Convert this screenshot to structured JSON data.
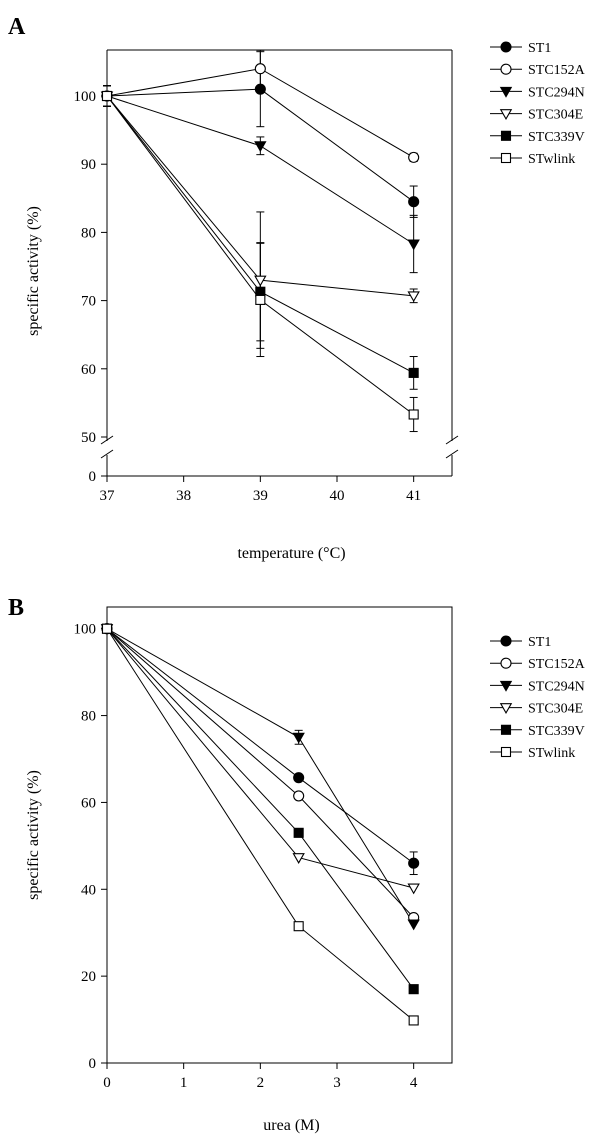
{
  "chart_data": [
    {
      "type": "line",
      "panel_label": "A",
      "xlabel": "temperature (°C)",
      "ylabel": "specific activity (%)",
      "x": [
        37,
        39,
        41
      ],
      "xticks": [
        37,
        38,
        39,
        40,
        41
      ],
      "yticks": [
        0,
        50,
        60,
        70,
        80,
        90,
        100
      ],
      "xlim": [
        37,
        41.5
      ],
      "ylim": [
        0,
        107
      ],
      "axis_break": {
        "from": 0,
        "to": 47
      },
      "grid": false,
      "legend_position": "top-right outside",
      "series": [
        {
          "name": "ST1",
          "marker": "circle-filled",
          "values": [
            100,
            101,
            84.5
          ],
          "errors": [
            1.5,
            5.5,
            2.3
          ]
        },
        {
          "name": "STC152A",
          "marker": "circle-open",
          "values": [
            100,
            104,
            91
          ],
          "errors": [
            1.5,
            2.7,
            0.6
          ]
        },
        {
          "name": "STC294N",
          "marker": "triangle-down-filled",
          "values": [
            100,
            92.7,
            78.3
          ],
          "errors": [
            1.5,
            1.3,
            4.2
          ]
        },
        {
          "name": "STC304E",
          "marker": "triangle-down-open",
          "values": [
            100,
            73,
            70.7
          ],
          "errors": [
            1.5,
            10,
            1.0
          ]
        },
        {
          "name": "STC339V",
          "marker": "square-filled",
          "values": [
            100,
            71.3,
            59.4
          ],
          "errors": [
            1.5,
            7.2,
            2.4
          ]
        },
        {
          "name": "STwlink",
          "marker": "square-open",
          "values": [
            100,
            70.1,
            53.3
          ],
          "errors": [
            1.5,
            8.3,
            2.5
          ]
        }
      ]
    },
    {
      "type": "line",
      "panel_label": "B",
      "xlabel": "urea (M)",
      "ylabel": "specific activity (%)",
      "x": [
        0,
        2.5,
        4
      ],
      "xticks": [
        0,
        1,
        2,
        3,
        4
      ],
      "yticks": [
        0,
        20,
        40,
        60,
        80,
        100
      ],
      "xlim": [
        0,
        4.5
      ],
      "ylim": [
        0,
        105
      ],
      "grid": false,
      "legend_position": "top-right outside",
      "series": [
        {
          "name": "ST1",
          "marker": "circle-filled",
          "values": [
            100,
            65.7,
            46
          ],
          "errors": [
            0,
            0,
            2.6
          ]
        },
        {
          "name": "STC152A",
          "marker": "circle-open",
          "values": [
            100,
            61.5,
            33.5
          ],
          "errors": [
            0,
            0,
            0
          ]
        },
        {
          "name": "STC294N",
          "marker": "triangle-down-filled",
          "values": [
            100,
            75,
            32
          ],
          "errors": [
            0,
            1.6,
            0
          ]
        },
        {
          "name": "STC304E",
          "marker": "triangle-down-open",
          "values": [
            100,
            47.3,
            40.3
          ],
          "errors": [
            0,
            0,
            0
          ]
        },
        {
          "name": "STC339V",
          "marker": "square-filled",
          "values": [
            100,
            53,
            17
          ],
          "errors": [
            0,
            0,
            0
          ]
        },
        {
          "name": "STwlink",
          "marker": "square-open",
          "values": [
            100,
            31.5,
            9.8
          ],
          "errors": [
            0,
            0,
            0
          ]
        }
      ]
    }
  ]
}
